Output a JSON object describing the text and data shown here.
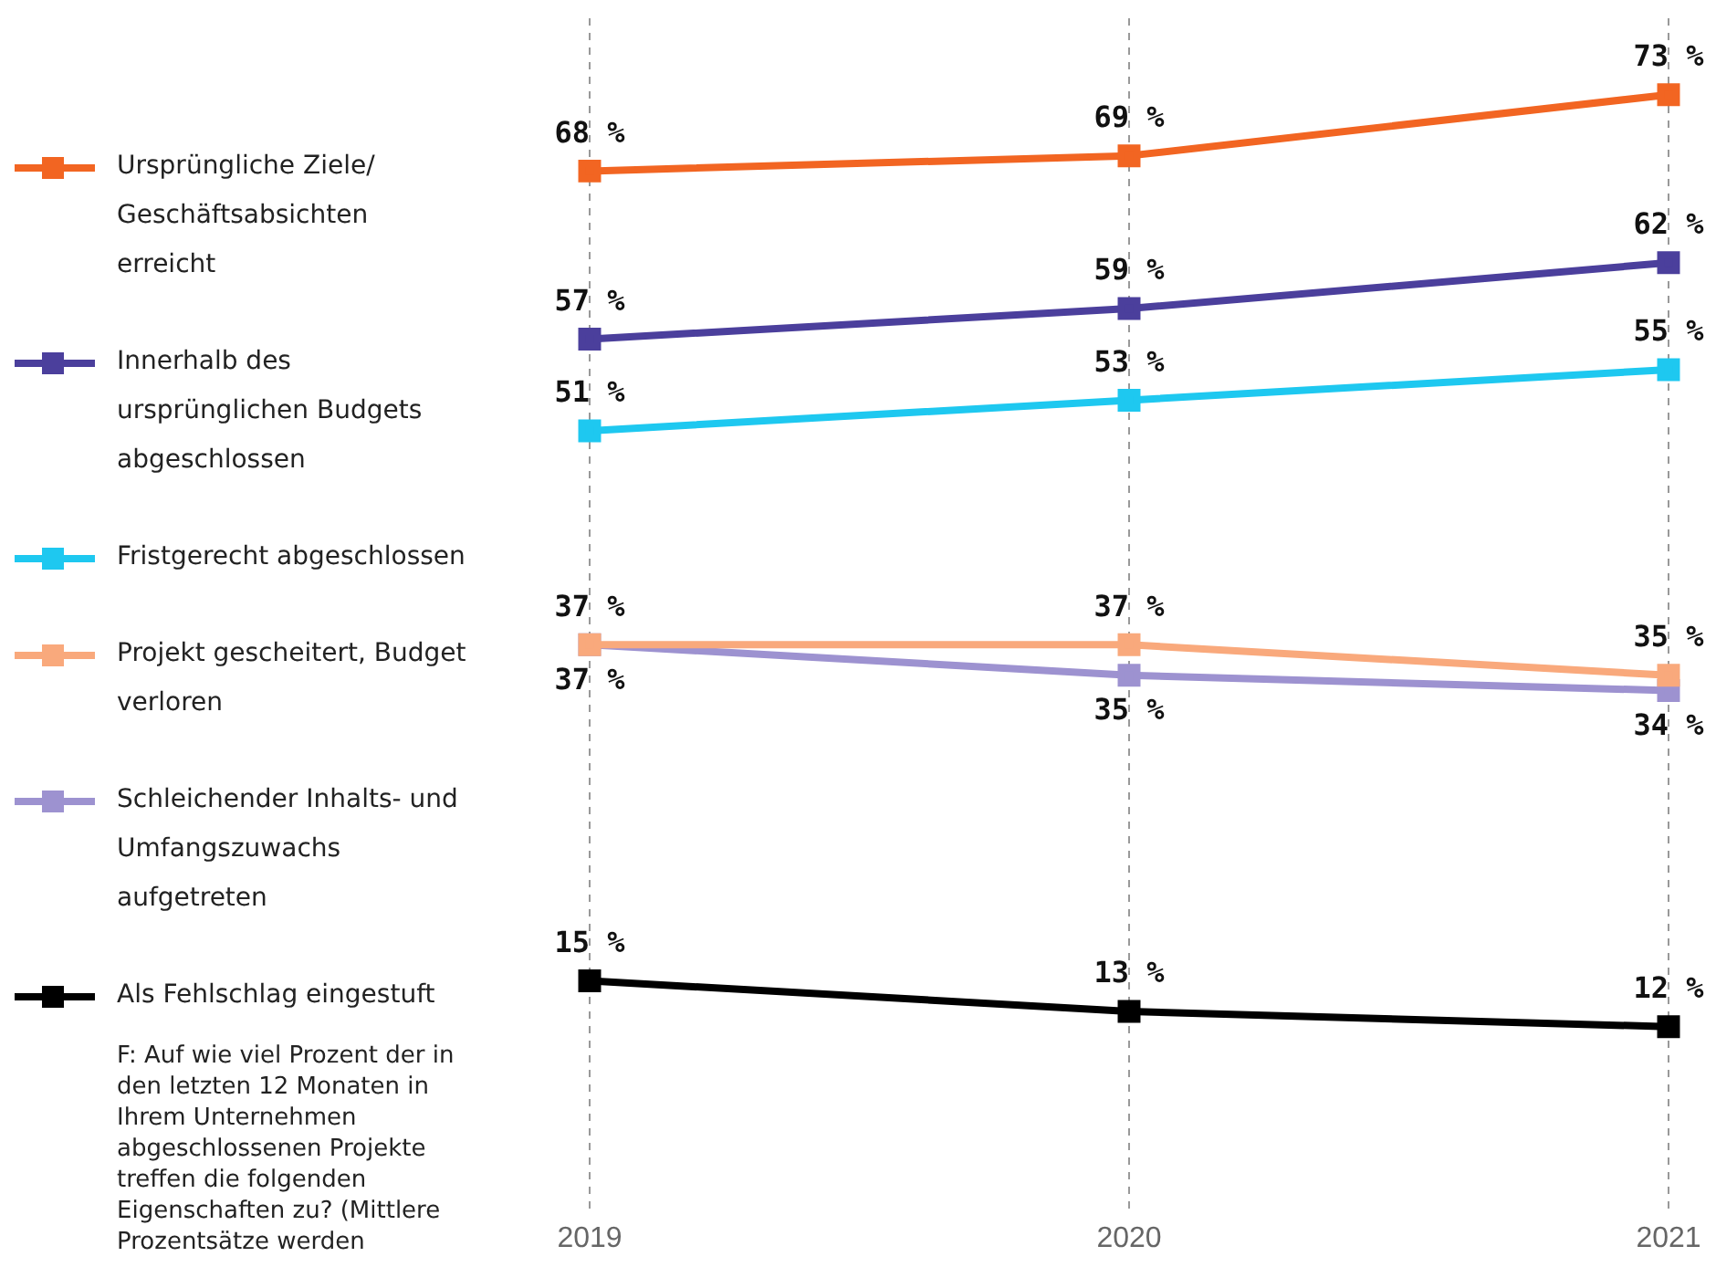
{
  "chart_data": {
    "type": "line",
    "categories": [
      "2019",
      "2020",
      "2021"
    ],
    "series": [
      {
        "name": "Ursprüngliche Ziele/ Geschäftsabsichten erreicht",
        "color": "#f26522",
        "values": [
          68,
          69,
          73
        ],
        "value_labels": [
          "68 %",
          "69 %",
          "73 %"
        ]
      },
      {
        "name": "Innerhalb des ursprünglichen Budgets abgeschlossen",
        "color": "#4b3f9c",
        "values": [
          57,
          59,
          62
        ],
        "value_labels": [
          "57 %",
          "59 %",
          "62 %"
        ]
      },
      {
        "name": "Fristgerecht abgeschlossen",
        "color": "#1ec8f0",
        "values": [
          51,
          53,
          55
        ],
        "value_labels": [
          "51 %",
          "53 %",
          "55 %"
        ]
      },
      {
        "name": "Projekt gescheitert, Budget verloren",
        "color": "#f9a97c",
        "values": [
          37,
          37,
          35
        ],
        "value_labels": [
          "37 %",
          "37 %",
          "35 %"
        ]
      },
      {
        "name": "Schleichender Inhalts- und Umfangszuwachs aufgetreten",
        "color": "#9d92d0",
        "values": [
          37,
          35,
          34
        ],
        "value_labels": [
          "37 %",
          "35 %",
          "34 %"
        ]
      },
      {
        "name": "Als Fehlschlag eingestuft",
        "color": "#000000",
        "values": [
          15,
          13,
          12
        ],
        "value_labels": [
          "15 %",
          "13 %",
          "12 %"
        ]
      }
    ],
    "ylim": [
      0,
      78
    ],
    "tick_labels": "x",
    "grid": "x",
    "legend": "left",
    "marker": "square",
    "line_style": "solid",
    "annotations": [
      "F: Auf wie viel Prozent der in den letzten 12 Monaten in Ihrem Unternehmen abgeschlossenen Projekte treffen die folgenden Eigenschaften zu? (Mittlere Prozentsätze werden"
    ]
  }
}
